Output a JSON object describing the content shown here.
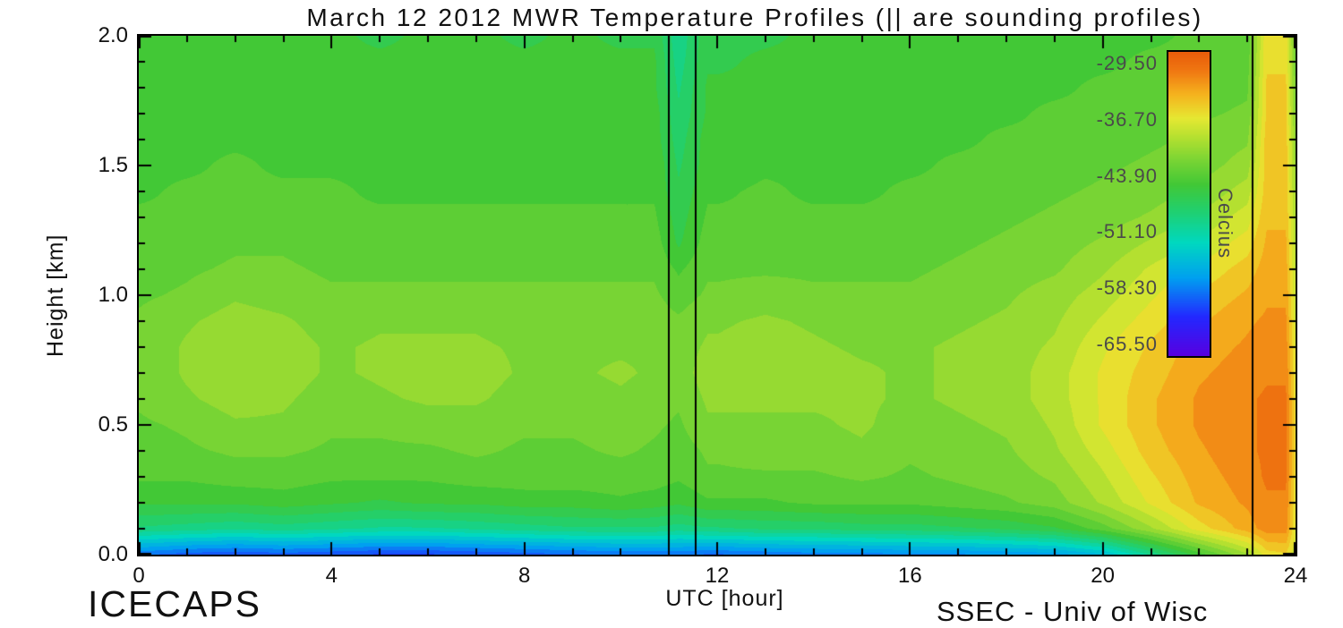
{
  "footer": {
    "left": "ICECAPS",
    "right": "SSEC - Univ of Wisc"
  },
  "chart_data": {
    "type": "heatmap",
    "title": "March 12 2012 MWR Temperature Profiles (|| are sounding profiles)",
    "xlabel": "UTC [hour]",
    "ylabel": "Height [km]",
    "xlim": [
      0,
      24
    ],
    "ylim": [
      0,
      2
    ],
    "x_major_ticks": [
      0,
      4,
      8,
      12,
      16,
      20,
      24
    ],
    "x_minor_step": 1,
    "y_major_ticks": [
      0.0,
      0.5,
      1.0,
      1.5,
      2.0
    ],
    "y_minor_step": 0.1,
    "grid_lines": "off",
    "legend_position": "colorbar-inside-right",
    "colorbar": {
      "label": "Celcius",
      "tick_values": [
        -29.5,
        -36.7,
        -43.9,
        -51.1,
        -58.3,
        -65.5
      ],
      "range_top": -28.0,
      "range_bottom": -67.0
    },
    "contour_step_c": 1.5,
    "sounding_profile_hours": [
      11.0,
      11.55,
      23.1
    ],
    "colormap_stops": [
      {
        "v": -67.0,
        "rgb": [
          88,
          0,
          224
        ]
      },
      {
        "v": -62.0,
        "rgb": [
          35,
          40,
          255
        ]
      },
      {
        "v": -57.0,
        "rgb": [
          0,
          160,
          240
        ]
      },
      {
        "v": -52.5,
        "rgb": [
          0,
          216,
          192
        ]
      },
      {
        "v": -48.5,
        "rgb": [
          32,
          208,
          112
        ]
      },
      {
        "v": -45.0,
        "rgb": [
          66,
          200,
          54
        ]
      },
      {
        "v": -42.0,
        "rgb": [
          120,
          212,
          52
        ]
      },
      {
        "v": -39.0,
        "rgb": [
          180,
          224,
          48
        ]
      },
      {
        "v": -36.5,
        "rgb": [
          230,
          232,
          50
        ]
      },
      {
        "v": -33.5,
        "rgb": [
          245,
          180,
          30
        ]
      },
      {
        "v": -30.5,
        "rgb": [
          240,
          120,
          18
        ]
      },
      {
        "v": -28.0,
        "rgb": [
          232,
          92,
          10
        ]
      }
    ],
    "grid": {
      "hours": [
        0,
        1,
        2,
        3,
        4,
        5,
        6,
        7,
        8,
        9,
        10,
        10.7,
        11.2,
        11.8,
        12,
        13,
        14,
        15,
        16,
        17,
        18,
        19,
        20,
        21,
        22,
        23,
        23.4,
        23.8,
        24
      ],
      "heights_km": [
        0.0,
        0.1,
        0.2,
        0.3,
        0.4,
        0.5,
        0.6,
        0.7,
        0.8,
        0.9,
        1.0,
        1.1,
        1.2,
        1.3,
        1.4,
        1.5,
        1.6,
        1.7,
        1.8,
        1.9,
        2.0
      ],
      "temps_c": [
        [
          -59,
          -60,
          -60.5,
          -60,
          -60.5,
          -61,
          -61,
          -60.5,
          -60,
          -59.5,
          -59,
          -59,
          -59,
          -59.5,
          -59.5,
          -59,
          -58.5,
          -58.5,
          -58,
          -58,
          -57.5,
          -57,
          -55,
          -50,
          -45,
          -40,
          -36,
          -35.5,
          -38
        ],
        [
          -49,
          -49.5,
          -50,
          -49.5,
          -50,
          -50.5,
          -50.5,
          -50,
          -49.5,
          -49,
          -49,
          -49,
          -49.5,
          -49,
          -49,
          -48.5,
          -48.5,
          -48,
          -48,
          -47.5,
          -47,
          -46,
          -43.5,
          -40,
          -36,
          -33,
          -31.5,
          -31.5,
          -37
        ],
        [
          -45.5,
          -45.5,
          -45.5,
          -45,
          -45.5,
          -46,
          -45.5,
          -45.5,
          -45,
          -45,
          -44.5,
          -45,
          -45.5,
          -44.5,
          -44.5,
          -44.5,
          -44,
          -44,
          -44,
          -43.5,
          -43,
          -42,
          -39.5,
          -36.5,
          -33.5,
          -32,
          -31,
          -31,
          -36.5
        ],
        [
          -44,
          -44,
          -43.5,
          -43.5,
          -44,
          -44,
          -44,
          -43.5,
          -43.5,
          -43.5,
          -43.5,
          -43.5,
          -44,
          -43,
          -43,
          -43,
          -43,
          -42.5,
          -43,
          -42.5,
          -42,
          -41,
          -38.5,
          -35.5,
          -33,
          -31.5,
          -30.5,
          -30.5,
          -36
        ],
        [
          -43.5,
          -43,
          -42.5,
          -42.5,
          -43,
          -43,
          -43,
          -42.5,
          -43,
          -43,
          -42.5,
          -43,
          -43.5,
          -42.5,
          -42.5,
          -42,
          -42,
          -41.5,
          -42.5,
          -42,
          -41.5,
          -40,
          -37.5,
          -34.5,
          -32.5,
          -31,
          -30.5,
          -30.5,
          -36
        ],
        [
          -43,
          -42.5,
          -41.5,
          -41.5,
          -42.5,
          -42.5,
          -42,
          -42,
          -42.5,
          -42.5,
          -42,
          -42.5,
          -43,
          -41.5,
          -41.5,
          -41.5,
          -41.5,
          -41,
          -42,
          -41.5,
          -41,
          -39.5,
          -36.5,
          -34,
          -32,
          -31,
          -30.5,
          -30.5,
          -36
        ],
        [
          -42.5,
          -41.5,
          -40.5,
          -41,
          -42,
          -41.5,
          -41,
          -41,
          -42,
          -42,
          -41.5,
          -42,
          -42.5,
          -41,
          -41,
          -41,
          -41,
          -41,
          -41.5,
          -41,
          -40.5,
          -39,
          -36.5,
          -34,
          -32,
          -31,
          -30.5,
          -30.5,
          -36
        ],
        [
          -42.5,
          -41,
          -40,
          -40.5,
          -41.5,
          -41,
          -40.5,
          -40.5,
          -41.5,
          -41.5,
          -41,
          -41.5,
          -42,
          -40.5,
          -40.5,
          -40.5,
          -40.5,
          -41,
          -41.5,
          -41,
          -40.5,
          -39,
          -36.5,
          -34.5,
          -32.5,
          -31.5,
          -31,
          -31,
          -36.5
        ],
        [
          -42.5,
          -41,
          -40,
          -40.5,
          -41.5,
          -41,
          -41,
          -41,
          -41.5,
          -41.5,
          -41.5,
          -41.5,
          -42,
          -41,
          -41,
          -40.5,
          -41,
          -41.5,
          -41.5,
          -41,
          -40.5,
          -39.5,
          -37,
          -35,
          -33,
          -32,
          -31.5,
          -31.5,
          -37
        ],
        [
          -42.5,
          -41.5,
          -40.5,
          -41,
          -42,
          -41.5,
          -41.5,
          -41.5,
          -42,
          -42,
          -42,
          -42,
          -42.5,
          -41.5,
          -41.5,
          -41,
          -41.5,
          -42,
          -42,
          -41.5,
          -41,
          -40,
          -38,
          -36,
          -34,
          -32.5,
          -32,
          -32,
          -37.5
        ],
        [
          -43,
          -42.5,
          -41.5,
          -42,
          -42.5,
          -42.5,
          -42.5,
          -42.5,
          -42.5,
          -42.5,
          -42.5,
          -42.5,
          -43.5,
          -42.5,
          -42.5,
          -42,
          -42.5,
          -42.5,
          -42.5,
          -42,
          -41.5,
          -40.5,
          -39,
          -37,
          -35,
          -33.5,
          -32.5,
          -32.5,
          -38
        ],
        [
          -43.5,
          -43,
          -42.5,
          -42.5,
          -43,
          -43,
          -43,
          -43,
          -43,
          -43,
          -43,
          -43,
          -44.5,
          -43,
          -43,
          -43,
          -43,
          -43,
          -43,
          -42.5,
          -42,
          -41.5,
          -40,
          -38,
          -36.5,
          -34.5,
          -33,
          -33,
          -38.5
        ],
        [
          -44,
          -43.5,
          -43,
          -43,
          -43.5,
          -43.5,
          -43.5,
          -43.5,
          -43.5,
          -43.5,
          -43.5,
          -43.5,
          -46,
          -43.5,
          -43.5,
          -43.5,
          -43.5,
          -43.5,
          -43.5,
          -43,
          -42.5,
          -42,
          -41,
          -39.5,
          -38,
          -36,
          -33.5,
          -33.5,
          -39
        ],
        [
          -44,
          -44,
          -43.5,
          -43.5,
          -44,
          -44,
          -44,
          -44,
          -44,
          -44,
          -44,
          -44,
          -46.5,
          -44,
          -44,
          -44,
          -44,
          -44,
          -44,
          -43.5,
          -43,
          -42.5,
          -42,
          -41,
          -39.5,
          -37.5,
          -34,
          -34,
          -39.5
        ],
        [
          -44.5,
          -44,
          -44,
          -44,
          -44,
          -44.5,
          -44.5,
          -44.5,
          -44.5,
          -44.5,
          -44.5,
          -44.5,
          -47,
          -44.5,
          -44.5,
          -44,
          -44.5,
          -44.5,
          -44,
          -44,
          -43.5,
          -43,
          -42.5,
          -42,
          -41,
          -39,
          -34.5,
          -34.5,
          -40
        ],
        [
          -44.5,
          -44.5,
          -44,
          -44.5,
          -44.5,
          -44.5,
          -44.5,
          -44.5,
          -44.5,
          -44.5,
          -44.5,
          -44.5,
          -47.5,
          -45,
          -45,
          -44.5,
          -44.5,
          -44.5,
          -44.5,
          -44,
          -44,
          -43.5,
          -43,
          -42.5,
          -42,
          -40.5,
          -34.5,
          -34.5,
          -40.5
        ],
        [
          -45,
          -44.5,
          -44.5,
          -44.5,
          -45,
          -45,
          -45,
          -45,
          -45,
          -44.5,
          -45,
          -45,
          -48,
          -45,
          -45,
          -45,
          -45,
          -45,
          -44.5,
          -44.5,
          -44,
          -44,
          -43.5,
          -43,
          -42.5,
          -41.5,
          -34.5,
          -34.5,
          -41
        ],
        [
          -45,
          -45,
          -44.5,
          -45,
          -45,
          -45,
          -45,
          -45,
          -45,
          -45,
          -45,
          -45,
          -48.5,
          -45.5,
          -45.5,
          -45,
          -45,
          -45,
          -45,
          -44.5,
          -44.5,
          -44,
          -44,
          -43.5,
          -43,
          -42.5,
          -35,
          -35,
          -41.5
        ],
        [
          -45,
          -45,
          -45,
          -45,
          -45.5,
          -45.5,
          -45,
          -45,
          -45.5,
          -45,
          -45.5,
          -45.5,
          -49,
          -45.5,
          -45.5,
          -45.5,
          -45,
          -45.5,
          -45,
          -45,
          -44.5,
          -44.5,
          -44,
          -44,
          -43.5,
          -43,
          -35,
          -35,
          -42
        ],
        [
          -45.5,
          -45,
          -45,
          -45,
          -45.5,
          -45.5,
          -45.5,
          -45.5,
          -45.5,
          -45.5,
          -45.5,
          -45.5,
          -49.5,
          -46,
          -46,
          -45.5,
          -45.5,
          -45.5,
          -45,
          -45,
          -45,
          -44.5,
          -44.5,
          -44,
          -44,
          -43.5,
          -35.5,
          -35.5,
          -42.5
        ],
        [
          -45.5,
          -45.5,
          -45,
          -45.5,
          -45.5,
          -46,
          -45.5,
          -45.5,
          -46,
          -45.5,
          -46,
          -46,
          -50,
          -46,
          -46,
          -46,
          -45.5,
          -45.5,
          -45.5,
          -45,
          -45,
          -45,
          -44.5,
          -44.5,
          -44,
          -44,
          -35.5,
          -35.5,
          -43
        ]
      ]
    }
  }
}
